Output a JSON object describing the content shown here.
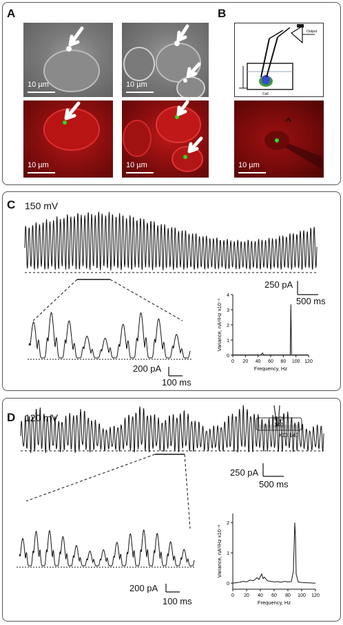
{
  "panels": {
    "A": {
      "label": "A",
      "scale_bar": "10 µm"
    },
    "B": {
      "label": "B",
      "scale_bar": "10 µm"
    },
    "C": {
      "label": "C",
      "voltage": "150 mV",
      "trace_scale": {
        "current": "250 pA",
        "time": "500 ms"
      },
      "zoom_scale": {
        "current": "200 pA",
        "time": "100 ms"
      }
    },
    "D": {
      "label": "D",
      "voltage": "120 mV",
      "inset_labels": {
        "pipette": "KCl\n140",
        "bath": "KCl 140"
      },
      "trace_scale": {
        "current": "250 pA",
        "time": "500 ms"
      },
      "zoom_scale": {
        "current": "200 pA",
        "time": "100 ms"
      }
    }
  },
  "chart_data": [
    {
      "type": "line",
      "panel": "C",
      "xlabel": "Frequency, Hz",
      "ylabel": "Variance, nA²/Hz x10⁻¹",
      "xlim": [
        0,
        120
      ],
      "ylim": [
        0,
        4
      ],
      "xticks": [
        0,
        20,
        40,
        60,
        80,
        100,
        120
      ],
      "yticks": [
        0,
        1,
        2,
        3,
        4
      ],
      "x": [
        0,
        45,
        46,
        47,
        48,
        49,
        90,
        91,
        92,
        93,
        94,
        120
      ],
      "y": [
        0.02,
        0.02,
        0.1,
        0.15,
        0.08,
        0.02,
        0.02,
        0.02,
        3.35,
        0.02,
        0.02,
        0.02
      ]
    },
    {
      "type": "line",
      "panel": "D",
      "xlabel": "Frequency, Hz",
      "ylabel": "Variance, nA²/Hz x10⁻²",
      "xlim": [
        0,
        120
      ],
      "ylim": [
        -0.2,
        2.3
      ],
      "xticks": [
        0,
        20,
        40,
        60,
        80,
        100,
        120
      ],
      "yticks": [
        0,
        1,
        2
      ],
      "x": [
        0,
        10,
        15,
        20,
        25,
        30,
        35,
        38,
        40,
        42,
        44,
        46,
        50,
        55,
        60,
        65,
        70,
        75,
        80,
        85,
        88,
        89,
        90,
        91,
        92,
        95,
        100,
        110,
        120
      ],
      "y": [
        0.0,
        0.03,
        0.06,
        0.04,
        0.1,
        0.08,
        0.18,
        0.12,
        0.22,
        0.3,
        0.15,
        0.2,
        0.08,
        0.06,
        0.04,
        0.05,
        0.03,
        0.06,
        0.04,
        0.05,
        0.4,
        1.2,
        2.0,
        1.5,
        0.3,
        0.04,
        0.02,
        0.01,
        0.0
      ]
    }
  ]
}
